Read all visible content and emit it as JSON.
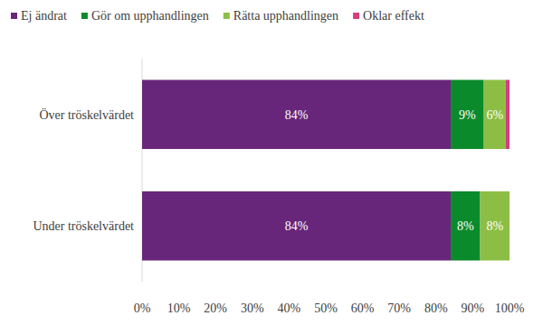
{
  "chart_data": {
    "type": "bar",
    "orientation": "horizontal",
    "stacked": true,
    "data_labels": true,
    "grid": false,
    "legend": "top",
    "categories": [
      "Över tröskelvärdet",
      "Under tröskelvärdet"
    ],
    "series": [
      {
        "name": "Ej ändrat",
        "color": "#68267a",
        "values": [
          84,
          84
        ],
        "value_labels": [
          "84%",
          "84%"
        ]
      },
      {
        "name": "Gör om upphandlingen",
        "color": "#0a8a2a",
        "values": [
          9,
          8
        ],
        "value_labels": [
          "9%",
          "8%"
        ]
      },
      {
        "name": "Rätta upphandlingen",
        "color": "#8cbe45",
        "values": [
          6,
          8
        ],
        "value_labels": [
          "6%",
          "8%"
        ]
      },
      {
        "name": "Oklar effekt",
        "color": "#d63e7f",
        "values": [
          1,
          0
        ],
        "value_labels": [
          null,
          null
        ]
      }
    ],
    "xlim": [
      0,
      100
    ],
    "xticks": [
      {
        "value": 0,
        "label": "0%"
      },
      {
        "value": 10,
        "label": "10%"
      },
      {
        "value": 20,
        "label": "20%"
      },
      {
        "value": 30,
        "label": "30%"
      },
      {
        "value": 40,
        "label": "40%"
      },
      {
        "value": 50,
        "label": "50%"
      },
      {
        "value": 60,
        "label": "60%"
      },
      {
        "value": 70,
        "label": "70%"
      },
      {
        "value": 80,
        "label": "80%"
      },
      {
        "value": 90,
        "label": "90%"
      },
      {
        "value": 100,
        "label": "100%"
      }
    ]
  }
}
